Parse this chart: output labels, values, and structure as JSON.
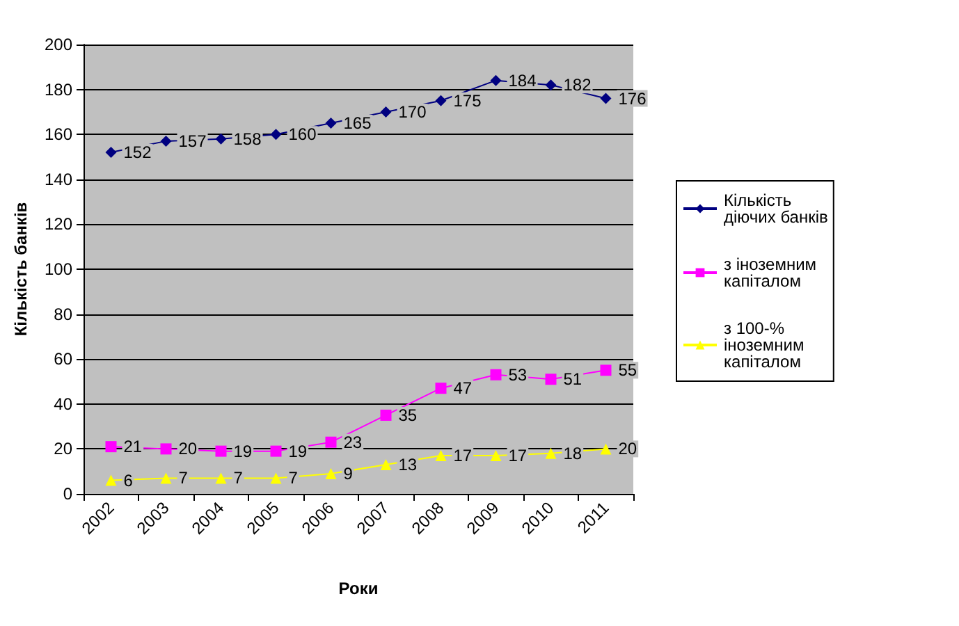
{
  "chart_data": {
    "type": "line",
    "xlabel": "Роки",
    "ylabel": "Кількість банків",
    "categories": [
      "2002",
      "2003",
      "2004",
      "2005",
      "2006",
      "2007",
      "2008",
      "2009",
      "2010",
      "2011"
    ],
    "series": [
      {
        "name": "Кількість діючих банків",
        "color": "#000080",
        "marker": "diamond",
        "values": [
          152,
          157,
          158,
          160,
          165,
          170,
          175,
          184,
          182,
          176
        ]
      },
      {
        "name": "з іноземним капіталом",
        "color": "#ff00ff",
        "marker": "square",
        "values": [
          21,
          20,
          19,
          19,
          23,
          35,
          47,
          53,
          51,
          55
        ]
      },
      {
        "name": "з 100-% іноземним капіталом",
        "color": "#ffff00",
        "marker": "triangle",
        "values": [
          6,
          7,
          7,
          7,
          9,
          13,
          17,
          17,
          18,
          20
        ]
      }
    ],
    "ylim": [
      0,
      200
    ],
    "yticks": [
      0,
      20,
      40,
      60,
      80,
      100,
      120,
      140,
      160,
      180,
      200
    ],
    "grid": "y",
    "legend": "right",
    "data_labels": true
  }
}
